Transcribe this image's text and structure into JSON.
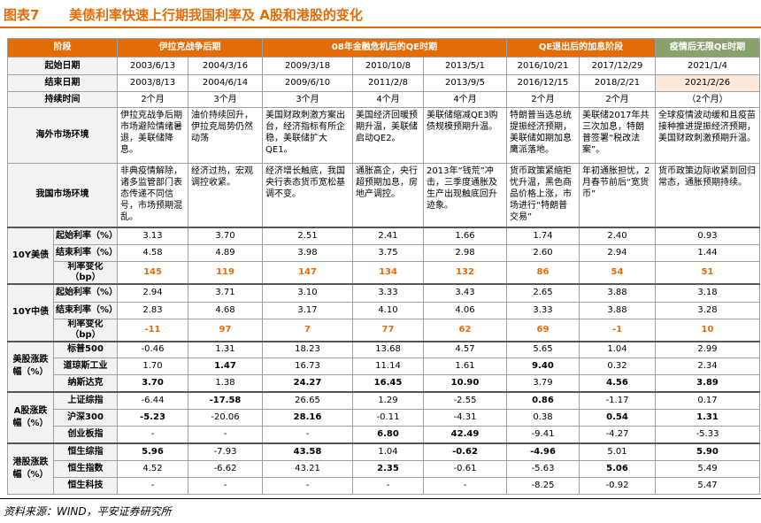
{
  "title": {
    "fig_no": "图表7",
    "text": "美债利率快速上行期我国利率及 A股和港股的变化"
  },
  "header": {
    "stage_label": "阶段",
    "stages": [
      "伊拉克战争后期",
      "08年金融危机后的QE时期",
      "QE退出后的加息阶段",
      "疫情后无限QE时期"
    ]
  },
  "rows": {
    "start_date": {
      "label": "起始日期",
      "values": [
        "2003/6/13",
        "2004/3/16",
        "2009/3/18",
        "2010/10/8",
        "2013/5/1",
        "2016/10/21",
        "2017/12/29",
        "2021/1/4"
      ]
    },
    "end_date": {
      "label": "结束日期",
      "values": [
        "2003/8/13",
        "2004/6/14",
        "2009/6/10",
        "2011/2/8",
        "2013/9/5",
        "2016/12/15",
        "2018/2/21",
        "2021/2/26"
      ]
    },
    "duration": {
      "label": "持续时间",
      "values": [
        "2个月",
        "3个月",
        "3个月",
        "4个月",
        "4个月",
        "2个月",
        "2个月",
        "（2个月）"
      ]
    },
    "overseas": {
      "label": "海外市场环境",
      "values": [
        "伊拉克战争后期市场避险情绪暑退，美联储降息。",
        "油价持续回升，伊拉克局势仍然动荡",
        "美国财政刺激方案出台，经济指标有所企稳，美联储扩大QE1。",
        "美国经济回暖预期升温，美联储启动QE2。",
        "美联储缩减QE3购债规模预期升温。",
        "特朗普当选总统提振经济预期，美联储如期加息鹰派落地。",
        "美联储2017年共三次加息，特朗普签署“税改法案”。",
        "全球疫情波动缓和且疫苗接种推进提振经济预期，美国财政刺激预期升温。"
      ]
    },
    "domestic": {
      "label": "我国市场环境",
      "values": [
        "非典疫情解除，诸多监管部门表态传递不同信号，市场预期混乱。",
        "经济过热，宏观调控收紧。",
        "经济增长触底，我国央行表态货币宽松基调不变。",
        "通胀高企，央行超预期加息，房地产调控。",
        "2013年“钱荒”冲击，三季度通胀及生产出现触底回升迹象。",
        "货币政策紧缩拒忧升温，黑色商品价格上涨，市场进行“特朗普交易”",
        "年初通胀担忧，2月春节前后“宽货币”",
        "货币政策边际收紧到回归常态，通胀预期持续。"
      ]
    },
    "us10y": {
      "group": "10Y美债",
      "items": [
        {
          "label": "起始利率（%）",
          "values": [
            "3.13",
            "3.70",
            "2.51",
            "2.41",
            "1.66",
            "1.74",
            "2.40",
            "0.93"
          ]
        },
        {
          "label": "结束利率（%）",
          "values": [
            "4.58",
            "4.89",
            "3.98",
            "3.75",
            "2.98",
            "2.60",
            "2.94",
            "1.44"
          ]
        },
        {
          "label": "利率变化（bp）",
          "values": [
            "145",
            "119",
            "147",
            "134",
            "132",
            "86",
            "54",
            "51"
          ]
        }
      ]
    },
    "cn10y": {
      "group": "10Y中债",
      "items": [
        {
          "label": "起始利率（%）",
          "values": [
            "2.94",
            "3.71",
            "3.10",
            "3.33",
            "3.43",
            "2.65",
            "3.88",
            "3.18"
          ]
        },
        {
          "label": "结束利率（%）",
          "values": [
            "2.83",
            "4.68",
            "3.17",
            "4.10",
            "4.06",
            "3.33",
            "3.88",
            "3.28"
          ]
        },
        {
          "label": "利率变化（bp）",
          "values": [
            "-11",
            "97",
            "7",
            "77",
            "62",
            "69",
            "-1",
            "10"
          ]
        }
      ]
    },
    "us_stock": {
      "group": "美股涨跌幅（%）",
      "items": [
        {
          "label": "标普500",
          "values": [
            "-0.46",
            "1.31",
            "18.23",
            "13.68",
            "4.57",
            "5.65",
            "1.04",
            "2.99"
          ]
        },
        {
          "label": "道琼斯工业",
          "values": [
            "1.70",
            "1.47",
            "16.73",
            "11.14",
            "1.61",
            "9.40",
            "0.32",
            "2.34"
          ]
        },
        {
          "label": "纳斯达克",
          "values": [
            "3.70",
            "1.38",
            "24.27",
            "16.45",
            "10.90",
            "3.79",
            "4.56",
            "3.89"
          ]
        }
      ]
    },
    "a_stock": {
      "group": "A股涨跌幅（%）",
      "items": [
        {
          "label": "上证综指",
          "values": [
            "-6.44",
            "-17.58",
            "26.65",
            "1.29",
            "-2.55",
            "0.86",
            "-1.17",
            "0.17"
          ]
        },
        {
          "label": "沪深300",
          "values": [
            "-5.23",
            "-20.06",
            "28.16",
            "-0.11",
            "-4.31",
            "0.38",
            "0.54",
            "1.31"
          ]
        },
        {
          "label": "创业板指",
          "values": [
            "-",
            "-",
            "-",
            "6.80",
            "42.49",
            "-9.41",
            "-4.27",
            "-5.33"
          ]
        }
      ]
    },
    "hk_stock": {
      "group": "港股涨跌幅（%）",
      "items": [
        {
          "label": "恒生综指",
          "values": [
            "5.96",
            "-7.93",
            "43.58",
            "1.04",
            "-0.62",
            "-4.96",
            "5.01",
            "5.90"
          ]
        },
        {
          "label": "恒生指数",
          "values": [
            "4.52",
            "-6.62",
            "43.21",
            "2.35",
            "-0.61",
            "-5.63",
            "5.06",
            "5.49"
          ]
        },
        {
          "label": "恒生科技",
          "values": [
            "-",
            "-",
            "-",
            "-",
            "-",
            "-8.25",
            "-0.92",
            "5.47"
          ]
        }
      ]
    }
  },
  "source": "资料来源：WIND，平安证券研究所",
  "colors": {
    "header_orange": "#e36c09",
    "header_green": "#8aa16b",
    "highlight": "#fde9d9"
  }
}
